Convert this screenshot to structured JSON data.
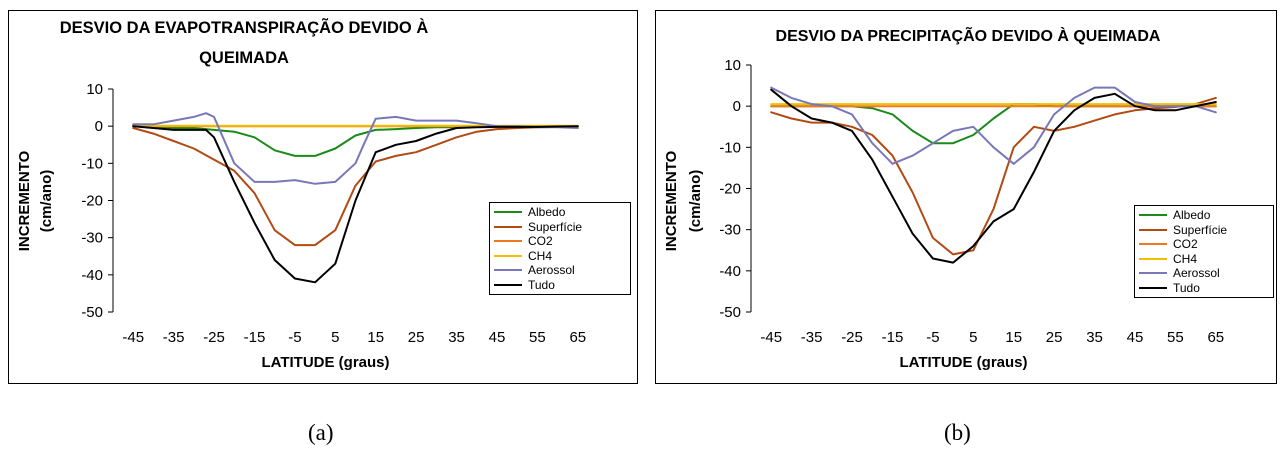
{
  "captions": {
    "a": "(a)",
    "b": "(b)"
  },
  "chart_data": [
    {
      "type": "line",
      "title": "DESVIO DA EVAPOTRANSPIRAÇÃO DEVIDO À QUEIMADA",
      "title_lines": [
        "DESVIO DA EVAPOTRANSPIRAÇÃO DEVIDO À",
        "QUEIMADA"
      ],
      "xlabel": "LATITUDE (graus)",
      "ylabel_lines": [
        "INCREMENTO",
        "(cm/ano)"
      ],
      "x_ticks": [
        -45,
        -35,
        -25,
        -15,
        -5,
        5,
        15,
        25,
        35,
        45,
        55,
        65
      ],
      "x_tick_labels": [
        "-45",
        "-35",
        "-25",
        "-15",
        "-5",
        "5",
        "15",
        "25",
        "35",
        "45",
        "55",
        "65"
      ],
      "y_ticks": [
        10,
        0,
        -10,
        -20,
        -30,
        -40,
        -50
      ],
      "y_tick_labels": [
        "10",
        "0",
        "-10",
        "-20",
        "-30",
        "-40",
        "-50"
      ],
      "xlim": [
        -50,
        70
      ],
      "ylim": [
        -50,
        10
      ],
      "legend_position": "bottom-right",
      "series": [
        {
          "name": "Albedo",
          "color": "#1a8a1a",
          "x": [
            -45,
            -40,
            -35,
            -30,
            -25,
            -20,
            -15,
            -10,
            -5,
            0,
            5,
            10,
            15,
            20,
            25,
            30,
            35,
            40,
            45,
            50,
            55,
            60,
            65
          ],
          "y": [
            0.3,
            -0.2,
            -0.5,
            -0.5,
            -1,
            -1.5,
            -3,
            -6.5,
            -8,
            -8,
            -6,
            -2.5,
            -1,
            -0.8,
            -0.5,
            -0.3,
            -0.3,
            -0.2,
            -0.1,
            -0.2,
            -0.1,
            0,
            0
          ]
        },
        {
          "name": "Superfície",
          "color": "#b24a14",
          "x": [
            -45,
            -40,
            -35,
            -30,
            -25,
            -20,
            -15,
            -10,
            -5,
            0,
            5,
            10,
            15,
            20,
            25,
            30,
            35,
            40,
            45,
            50,
            55,
            60,
            65
          ],
          "y": [
            -0.5,
            -2,
            -4,
            -6,
            -9,
            -12,
            -18,
            -28,
            -32,
            -32,
            -28,
            -16,
            -9.5,
            -8,
            -7,
            -5,
            -3,
            -1.5,
            -0.8,
            -0.5,
            -0.3,
            -0.2,
            0
          ]
        },
        {
          "name": "CO2",
          "color": "#f07820",
          "x": [
            -45,
            -35,
            -25,
            -15,
            -5,
            5,
            15,
            25,
            35,
            45,
            55,
            65
          ],
          "y": [
            0,
            0,
            0,
            0,
            0,
            0,
            0,
            0,
            0,
            0,
            0,
            0
          ]
        },
        {
          "name": "CH4",
          "color": "#f0c000",
          "x": [
            -45,
            -35,
            -25,
            -15,
            -5,
            5,
            15,
            25,
            35,
            45,
            55,
            65
          ],
          "y": [
            0.1,
            0.1,
            0.1,
            0.1,
            0.1,
            0.1,
            0.1,
            0.1,
            0.1,
            0.1,
            0.1,
            0.1
          ]
        },
        {
          "name": "Aerossol",
          "color": "#7878b8",
          "x": [
            -45,
            -40,
            -35,
            -30,
            -27,
            -25,
            -20,
            -15,
            -10,
            -5,
            0,
            5,
            10,
            12,
            15,
            20,
            25,
            30,
            35,
            40,
            45,
            50,
            55,
            60,
            65
          ],
          "y": [
            0.5,
            0.5,
            1.5,
            2.5,
            3.5,
            2.5,
            -10,
            -15,
            -15,
            -14.5,
            -15.5,
            -15,
            -10,
            -5,
            2,
            2.5,
            1.5,
            1.5,
            1.5,
            0.8,
            0,
            0,
            -0.3,
            -0.3,
            -0.5
          ]
        },
        {
          "name": "Tudo",
          "color": "#000000",
          "x": [
            -45,
            -40,
            -35,
            -30,
            -27,
            -25,
            -20,
            -15,
            -10,
            -5,
            0,
            5,
            10,
            15,
            20,
            25,
            30,
            35,
            40,
            45,
            50,
            55,
            60,
            65
          ],
          "y": [
            0,
            -0.5,
            -1,
            -1,
            -1,
            -3,
            -15,
            -26,
            -36,
            -41,
            -42,
            -37,
            -20,
            -7,
            -5,
            -4,
            -2,
            -0.5,
            -0.3,
            -0.2,
            -0.2,
            -0.2,
            -0.1,
            0
          ]
        }
      ]
    },
    {
      "type": "line",
      "title": "DESVIO DA PRECIPITAÇÃO DEVIDO À QUEIMADA",
      "title_lines": [
        "DESVIO DA PRECIPITAÇÃO DEVIDO À QUEIMADA"
      ],
      "xlabel": "LATITUDE (graus)",
      "ylabel_lines": [
        "INCREMENTO",
        "(cm/ano)"
      ],
      "x_ticks": [
        -45,
        -35,
        -25,
        -15,
        -5,
        5,
        15,
        25,
        35,
        45,
        55,
        65
      ],
      "x_tick_labels": [
        "-45",
        "-35",
        "-25",
        "-15",
        "-5",
        "5",
        "15",
        "25",
        "35",
        "45",
        "55",
        "65"
      ],
      "y_ticks": [
        10,
        0,
        -10,
        -20,
        -30,
        -40,
        -50
      ],
      "y_tick_labels": [
        "10",
        "0",
        "-10",
        "-20",
        "-30",
        "-40",
        "-50"
      ],
      "xlim": [
        -50,
        70
      ],
      "ylim": [
        -50,
        10
      ],
      "legend_position": "bottom-right",
      "series": [
        {
          "name": "Albedo",
          "color": "#1a8a1a",
          "x": [
            -45,
            -40,
            -35,
            -30,
            -25,
            -20,
            -15,
            -10,
            -5,
            0,
            5,
            10,
            15,
            20,
            25,
            30,
            35,
            40,
            45,
            50,
            55,
            60,
            65
          ],
          "y": [
            0,
            0,
            0,
            0,
            0,
            -0.5,
            -2,
            -6,
            -9,
            -9,
            -7,
            -3,
            0.5,
            0.5,
            0,
            0,
            0,
            0,
            0,
            0,
            0,
            0,
            0
          ]
        },
        {
          "name": "Superfície",
          "color": "#b24a14",
          "x": [
            -45,
            -40,
            -35,
            -30,
            -25,
            -20,
            -15,
            -10,
            -5,
            0,
            5,
            10,
            15,
            20,
            25,
            30,
            35,
            40,
            45,
            50,
            55,
            60,
            65
          ],
          "y": [
            -1.5,
            -3,
            -4,
            -4,
            -5,
            -7,
            -12,
            -21,
            -32,
            -36,
            -35,
            -25,
            -10,
            -5,
            -6,
            -5,
            -3.5,
            -2,
            -1,
            -0.5,
            -0.2,
            0.5,
            2
          ]
        },
        {
          "name": "CO2",
          "color": "#f07820",
          "x": [
            -45,
            -35,
            -25,
            -15,
            -5,
            5,
            15,
            25,
            35,
            45,
            55,
            65
          ],
          "y": [
            0,
            0,
            0,
            0,
            0,
            0,
            0,
            0,
            0,
            0,
            0,
            0
          ]
        },
        {
          "name": "CH4",
          "color": "#f0c000",
          "x": [
            -45,
            -35,
            -25,
            -15,
            -5,
            5,
            15,
            25,
            35,
            45,
            55,
            65
          ],
          "y": [
            0.5,
            0.5,
            0.5,
            0.5,
            0.5,
            0.5,
            0.5,
            0.5,
            0.5,
            0.5,
            0.5,
            0.5
          ]
        },
        {
          "name": "Aerossol",
          "color": "#7878b8",
          "x": [
            -45,
            -40,
            -35,
            -30,
            -25,
            -20,
            -15,
            -10,
            -5,
            0,
            5,
            10,
            15,
            20,
            25,
            30,
            35,
            40,
            45,
            50,
            55,
            60,
            65
          ],
          "y": [
            4.5,
            2,
            0.5,
            0,
            -2,
            -9,
            -14,
            -12,
            -9,
            -6,
            -5,
            -10,
            -14,
            -10,
            -2,
            2,
            4.5,
            4.5,
            1,
            0,
            0,
            0,
            -1.5
          ]
        },
        {
          "name": "Tudo",
          "color": "#000000",
          "x": [
            -45,
            -40,
            -35,
            -30,
            -25,
            -20,
            -15,
            -10,
            -5,
            0,
            5,
            10,
            15,
            20,
            25,
            30,
            35,
            40,
            45,
            50,
            55,
            60,
            65
          ],
          "y": [
            4,
            0,
            -3,
            -4,
            -6,
            -13,
            -22,
            -31,
            -37,
            -38,
            -34,
            -28,
            -25,
            -16,
            -6,
            -1,
            2,
            3,
            0,
            -1,
            -1,
            0,
            1
          ]
        }
      ]
    }
  ]
}
